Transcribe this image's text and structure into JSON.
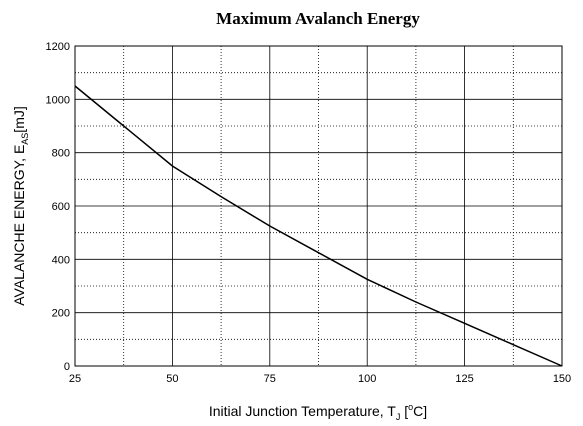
{
  "chart_data": {
    "type": "line",
    "title": "Maximum Avalanch Energy",
    "xlabel_parts": [
      "Initial Junction Temperature, T",
      "J",
      " [",
      "o",
      "C]"
    ],
    "ylabel_parts": [
      "AVALANCHE ENERGY, E",
      "AS",
      "[mJ]"
    ],
    "x": [
      25,
      37.5,
      50,
      62.5,
      75,
      87.5,
      100,
      112.5,
      125,
      137.5,
      150
    ],
    "series": [
      {
        "color": "#000000",
        "values": [
          1050,
          900,
          750,
          635,
          525,
          425,
          325,
          240,
          160,
          80,
          0
        ]
      }
    ],
    "xlim": [
      25,
      150
    ],
    "xticks": [
      25,
      50,
      75,
      100,
      125,
      150
    ],
    "xminor_ticks": [
      37.5,
      62.5,
      87.5,
      112.5,
      137.5
    ],
    "ylim": [
      0,
      1200
    ],
    "yticks": [
      0,
      200,
      400,
      600,
      800,
      1000,
      1200
    ],
    "yminor_ticks": [
      100,
      300,
      500,
      700,
      900,
      1100
    ],
    "grid": true
  }
}
